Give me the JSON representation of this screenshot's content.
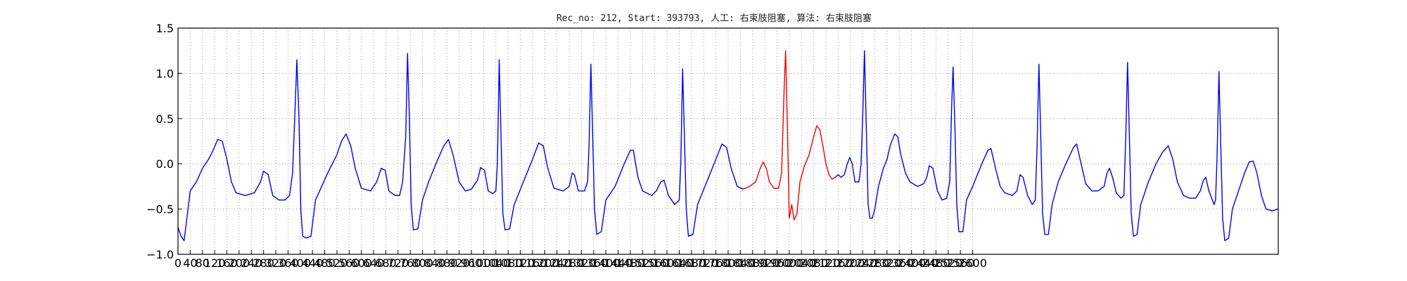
{
  "chart_data": {
    "type": "line",
    "title": "Rec_no: 212, Start: 393793, 人工: 右束肢阻塞, 算法: 右束肢阻塞",
    "xlabel": "",
    "ylabel": "",
    "xlim": [
      0,
      3600
    ],
    "ylim": [
      -1.0,
      1.5
    ],
    "yticks": [
      -1.0,
      -0.5,
      0.0,
      0.5,
      1.0,
      1.5
    ],
    "ytick_labels": [
      "−1.0",
      "−0.5",
      "0.0",
      "0.5",
      "1.0",
      "1.5"
    ],
    "xticks": [
      0,
      40,
      80,
      120,
      160,
      200,
      240,
      280,
      320,
      360,
      400,
      440,
      480,
      520,
      560,
      600,
      640,
      680,
      720,
      760,
      800,
      840,
      880,
      920,
      960,
      1000,
      1040,
      1080,
      1120,
      1160,
      1200,
      1240,
      1280,
      1320,
      1360,
      1400,
      1440,
      1480,
      1520,
      1560,
      1600,
      1640,
      1680,
      1720,
      1760,
      1800,
      1840,
      1880,
      1920,
      1960,
      2000,
      2040,
      2080,
      2120,
      2160,
      2200,
      2240,
      2280,
      2320,
      2360,
      2400,
      2440,
      2480,
      2520,
      2560,
      2600
    ],
    "grid": true,
    "grid_style": "dotted",
    "colors": {
      "normal": "#0000ee",
      "highlight": "#ee0000",
      "grid": "#888888",
      "axis": "#000000"
    },
    "series": [
      {
        "color": "#0000ee",
        "points": [
          [
            0,
            -0.7
          ],
          [
            10,
            -0.8
          ],
          [
            20,
            -0.85
          ],
          [
            40,
            -0.3
          ],
          [
            60,
            -0.2
          ],
          [
            80,
            -0.05
          ],
          [
            100,
            0.05
          ],
          [
            115,
            0.15
          ],
          [
            130,
            0.27
          ],
          [
            145,
            0.25
          ],
          [
            160,
            0.05
          ],
          [
            175,
            -0.2
          ],
          [
            190,
            -0.32
          ],
          [
            220,
            -0.35
          ],
          [
            250,
            -0.32
          ],
          [
            270,
            -0.2
          ],
          [
            280,
            -0.08
          ],
          [
            295,
            -0.12
          ],
          [
            310,
            -0.35
          ],
          [
            330,
            -0.4
          ],
          [
            350,
            -0.4
          ],
          [
            365,
            -0.35
          ],
          [
            375,
            -0.1
          ],
          [
            383,
            0.6
          ],
          [
            389,
            1.15
          ],
          [
            396,
            0.5
          ],
          [
            402,
            -0.5
          ],
          [
            408,
            -0.8
          ],
          [
            420,
            -0.82
          ],
          [
            435,
            -0.8
          ],
          [
            450,
            -0.4
          ],
          [
            470,
            -0.25
          ],
          [
            490,
            -0.1
          ],
          [
            520,
            0.1
          ],
          [
            535,
            0.25
          ],
          [
            550,
            0.33
          ],
          [
            565,
            0.2
          ],
          [
            580,
            -0.05
          ],
          [
            600,
            -0.27
          ],
          [
            630,
            -0.3
          ],
          [
            650,
            -0.2
          ],
          [
            665,
            -0.05
          ],
          [
            678,
            -0.07
          ],
          [
            690,
            -0.3
          ],
          [
            710,
            -0.35
          ],
          [
            725,
            -0.35
          ],
          [
            735,
            -0.2
          ],
          [
            745,
            0.3
          ],
          [
            751,
            1.22
          ],
          [
            757,
            0.5
          ],
          [
            763,
            -0.45
          ],
          [
            770,
            -0.73
          ],
          [
            785,
            -0.72
          ],
          [
            800,
            -0.4
          ],
          [
            820,
            -0.2
          ],
          [
            850,
            0.05
          ],
          [
            870,
            0.2
          ],
          [
            885,
            0.27
          ],
          [
            900,
            0.1
          ],
          [
            920,
            -0.2
          ],
          [
            940,
            -0.3
          ],
          [
            960,
            -0.28
          ],
          [
            980,
            -0.18
          ],
          [
            990,
            -0.04
          ],
          [
            1003,
            -0.07
          ],
          [
            1015,
            -0.3
          ],
          [
            1030,
            -0.33
          ],
          [
            1040,
            -0.3
          ],
          [
            1045,
            0.0
          ],
          [
            1051,
            1.15
          ],
          [
            1057,
            0.3
          ],
          [
            1063,
            -0.55
          ],
          [
            1070,
            -0.73
          ],
          [
            1085,
            -0.72
          ],
          [
            1100,
            -0.45
          ],
          [
            1130,
            -0.2
          ],
          [
            1160,
            0.05
          ],
          [
            1180,
            0.23
          ],
          [
            1195,
            0.2
          ],
          [
            1210,
            -0.05
          ],
          [
            1230,
            -0.27
          ],
          [
            1260,
            -0.3
          ],
          [
            1280,
            -0.25
          ],
          [
            1290,
            -0.1
          ],
          [
            1297,
            -0.12
          ],
          [
            1310,
            -0.3
          ],
          [
            1330,
            -0.3
          ],
          [
            1340,
            -0.2
          ],
          [
            1345,
            0.2
          ],
          [
            1351,
            1.1
          ],
          [
            1357,
            0.3
          ],
          [
            1363,
            -0.5
          ],
          [
            1370,
            -0.78
          ],
          [
            1385,
            -0.75
          ],
          [
            1400,
            -0.4
          ],
          [
            1430,
            -0.25
          ],
          [
            1460,
            0.0
          ],
          [
            1480,
            0.15
          ],
          [
            1490,
            0.15
          ],
          [
            1505,
            -0.15
          ],
          [
            1520,
            -0.3
          ],
          [
            1550,
            -0.35
          ],
          [
            1565,
            -0.3
          ],
          [
            1580,
            -0.2
          ],
          [
            1590,
            -0.18
          ],
          [
            1605,
            -0.35
          ],
          [
            1625,
            -0.45
          ],
          [
            1640,
            -0.4
          ],
          [
            1645,
            0.0
          ],
          [
            1651,
            1.05
          ],
          [
            1657,
            0.3
          ],
          [
            1663,
            -0.5
          ],
          [
            1670,
            -0.8
          ],
          [
            1685,
            -0.78
          ],
          [
            1700,
            -0.45
          ],
          [
            1730,
            -0.2
          ],
          [
            1760,
            0.05
          ],
          [
            1780,
            0.22
          ],
          [
            1795,
            0.18
          ],
          [
            1810,
            -0.05
          ],
          [
            1830,
            -0.25
          ],
          [
            1850,
            -0.28
          ]
        ]
      },
      {
        "color": "#ee0000",
        "points": [
          [
            1850,
            -0.28
          ],
          [
            1870,
            -0.25
          ],
          [
            1890,
            -0.2
          ],
          [
            1905,
            -0.05
          ],
          [
            1915,
            0.02
          ],
          [
            1925,
            -0.05
          ],
          [
            1935,
            -0.2
          ],
          [
            1950,
            -0.27
          ],
          [
            1965,
            -0.27
          ],
          [
            1975,
            -0.1
          ],
          [
            1983,
            0.8
          ],
          [
            1988,
            1.25
          ],
          [
            1994,
            0.4
          ],
          [
            2000,
            -0.6
          ],
          [
            2008,
            -0.45
          ],
          [
            2016,
            -0.62
          ],
          [
            2025,
            -0.55
          ],
          [
            2035,
            -0.2
          ],
          [
            2050,
            -0.02
          ],
          [
            2065,
            0.1
          ],
          [
            2080,
            0.3
          ],
          [
            2090,
            0.42
          ],
          [
            2100,
            0.38
          ],
          [
            2110,
            0.2
          ],
          [
            2120,
            0.0
          ],
          [
            2130,
            -0.12
          ],
          [
            2140,
            -0.17
          ],
          [
            2150,
            -0.15
          ]
        ]
      },
      {
        "color": "#0000ee",
        "points": [
          [
            2150,
            -0.15
          ],
          [
            2160,
            -0.12
          ],
          [
            2170,
            -0.15
          ],
          [
            2180,
            -0.12
          ],
          [
            2190,
            0.0
          ],
          [
            2198,
            0.07
          ],
          [
            2206,
            0.0
          ],
          [
            2215,
            -0.2
          ],
          [
            2228,
            -0.2
          ],
          [
            2235,
            0.0
          ],
          [
            2241,
            0.6
          ],
          [
            2246,
            1.25
          ],
          [
            2252,
            0.4
          ],
          [
            2258,
            -0.45
          ],
          [
            2264,
            -0.6
          ],
          [
            2272,
            -0.6
          ],
          [
            2280,
            -0.5
          ],
          [
            2292,
            -0.25
          ],
          [
            2308,
            -0.05
          ],
          [
            2320,
            0.05
          ],
          [
            2330,
            0.2
          ],
          [
            2345,
            0.33
          ],
          [
            2355,
            0.3
          ],
          [
            2365,
            0.1
          ],
          [
            2380,
            -0.1
          ],
          [
            2395,
            -0.2
          ],
          [
            2420,
            -0.25
          ],
          [
            2440,
            -0.22
          ],
          [
            2450,
            -0.15
          ],
          [
            2458,
            -0.02
          ],
          [
            2470,
            -0.05
          ],
          [
            2485,
            -0.3
          ],
          [
            2500,
            -0.4
          ],
          [
            2515,
            -0.38
          ],
          [
            2525,
            -0.2
          ],
          [
            2531,
            0.6
          ],
          [
            2536,
            1.07
          ],
          [
            2542,
            0.4
          ],
          [
            2548,
            -0.45
          ],
          [
            2555,
            -0.75
          ],
          [
            2568,
            -0.75
          ],
          [
            2580,
            -0.4
          ],
          [
            2600,
            -0.25
          ],
          [
            2630,
            0.0
          ],
          [
            2650,
            0.15
          ],
          [
            2660,
            0.17
          ],
          [
            2675,
            -0.05
          ],
          [
            2690,
            -0.25
          ],
          [
            2705,
            -0.32
          ],
          [
            2730,
            -0.35
          ],
          [
            2745,
            -0.3
          ],
          [
            2755,
            -0.12
          ],
          [
            2765,
            -0.15
          ],
          [
            2780,
            -0.35
          ],
          [
            2795,
            -0.45
          ],
          [
            2805,
            -0.4
          ],
          [
            2811,
            0.2
          ],
          [
            2817,
            1.1
          ],
          [
            2823,
            0.3
          ],
          [
            2829,
            -0.55
          ],
          [
            2836,
            -0.78
          ],
          [
            2848,
            -0.78
          ],
          [
            2860,
            -0.45
          ],
          [
            2880,
            -0.2
          ],
          [
            2905,
            0.0
          ],
          [
            2930,
            0.18
          ],
          [
            2940,
            0.22
          ],
          [
            2955,
            0.0
          ],
          [
            2970,
            -0.22
          ],
          [
            2990,
            -0.3
          ],
          [
            3010,
            -0.3
          ],
          [
            3030,
            -0.25
          ],
          [
            3040,
            -0.1
          ],
          [
            3048,
            -0.05
          ],
          [
            3058,
            -0.15
          ],
          [
            3070,
            -0.32
          ],
          [
            3085,
            -0.38
          ],
          [
            3095,
            -0.35
          ],
          [
            3101,
            0.3
          ],
          [
            3107,
            1.12
          ],
          [
            3113,
            0.3
          ],
          [
            3119,
            -0.55
          ],
          [
            3126,
            -0.8
          ],
          [
            3138,
            -0.78
          ],
          [
            3150,
            -0.45
          ],
          [
            3175,
            -0.2
          ],
          [
            3200,
            0.0
          ],
          [
            3220,
            0.12
          ],
          [
            3240,
            0.2
          ],
          [
            3255,
            0.05
          ],
          [
            3270,
            -0.2
          ],
          [
            3290,
            -0.35
          ],
          [
            3310,
            -0.38
          ],
          [
            3330,
            -0.38
          ],
          [
            3345,
            -0.3
          ],
          [
            3355,
            -0.18
          ],
          [
            3363,
            -0.15
          ],
          [
            3373,
            -0.3
          ],
          [
            3390,
            -0.45
          ],
          [
            3395,
            -0.4
          ],
          [
            3400,
            0.1
          ],
          [
            3406,
            1.02
          ],
          [
            3412,
            0.2
          ],
          [
            3418,
            -0.6
          ],
          [
            3425,
            -0.85
          ],
          [
            3438,
            -0.82
          ],
          [
            3450,
            -0.5
          ],
          [
            3470,
            -0.3
          ],
          [
            3490,
            -0.1
          ],
          [
            3505,
            0.02
          ],
          [
            3518,
            0.03
          ],
          [
            3530,
            -0.1
          ],
          [
            3545,
            -0.35
          ],
          [
            3560,
            -0.5
          ],
          [
            3580,
            -0.52
          ],
          [
            3600,
            -0.5
          ]
        ]
      }
    ]
  }
}
